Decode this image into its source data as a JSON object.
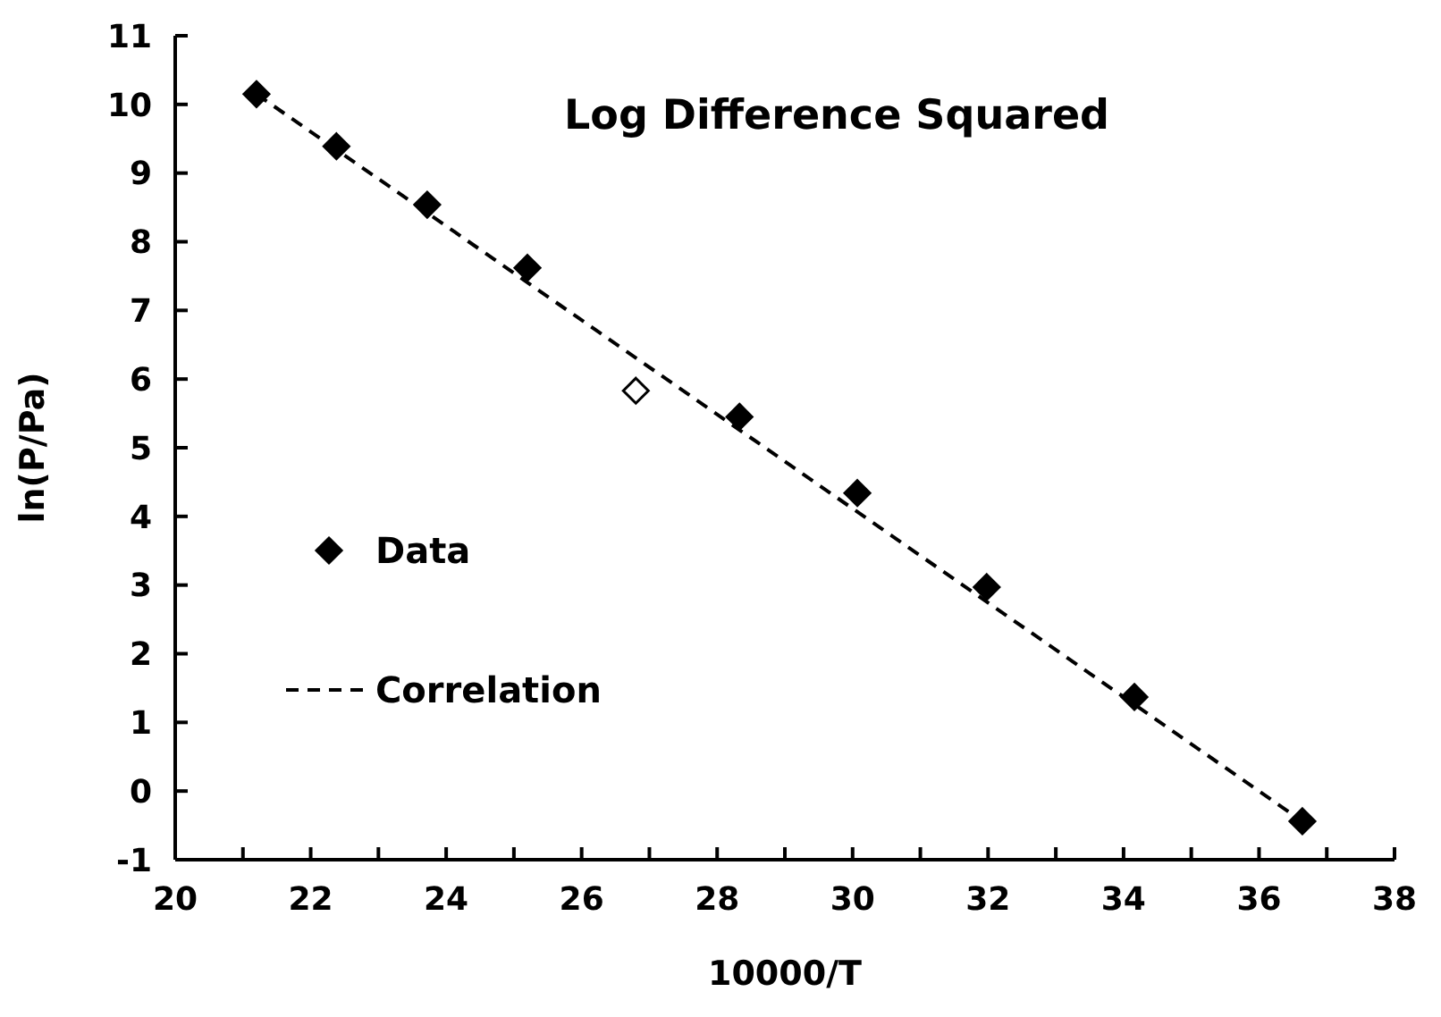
{
  "chart_data": {
    "type": "scatter",
    "title": "Log Difference Squared",
    "xlabel": "10000/T",
    "ylabel": "ln(P/Pa)",
    "xlim": [
      20,
      38
    ],
    "xticks": [
      20,
      {
        "value": 21,
        "label": null
      },
      22,
      {
        "value": 23,
        "label": null
      },
      24,
      {
        "value": 25,
        "label": null
      },
      26,
      {
        "value": 27,
        "label": null
      },
      28,
      {
        "value": 29,
        "label": null
      },
      30,
      {
        "value": 31,
        "label": null
      },
      32,
      {
        "value": 33,
        "label": null
      },
      34,
      {
        "value": 35,
        "label": null
      },
      36,
      {
        "value": 37,
        "label": null
      },
      38
    ],
    "ylim": [
      -1,
      11
    ],
    "yticks": [
      -1,
      0,
      1,
      2,
      3,
      4,
      5,
      6,
      7,
      8,
      9,
      10,
      11
    ],
    "grid": false,
    "legend": "left",
    "series": [
      {
        "name": "Data",
        "color": "#000000",
        "marker": "diamond",
        "x": [
          21.2,
          22.38,
          23.72,
          25.2,
          28.33,
          30.07,
          31.98,
          34.16,
          36.64
        ],
        "values": [
          10.15,
          9.39,
          8.54,
          7.62,
          5.45,
          4.34,
          2.97,
          1.37,
          -0.44
        ]
      },
      {
        "color": "#ffffff",
        "marker": "diamond",
        "x": [
          26.8
        ],
        "values": [
          5.83
        ]
      },
      {
        "name": "Correlation",
        "type": "line",
        "color": "#000000",
        "line_style": "dashed",
        "marker": "none",
        "x": [
          21.2,
          36.64
        ],
        "values": [
          10.15,
          -0.44
        ]
      }
    ]
  }
}
